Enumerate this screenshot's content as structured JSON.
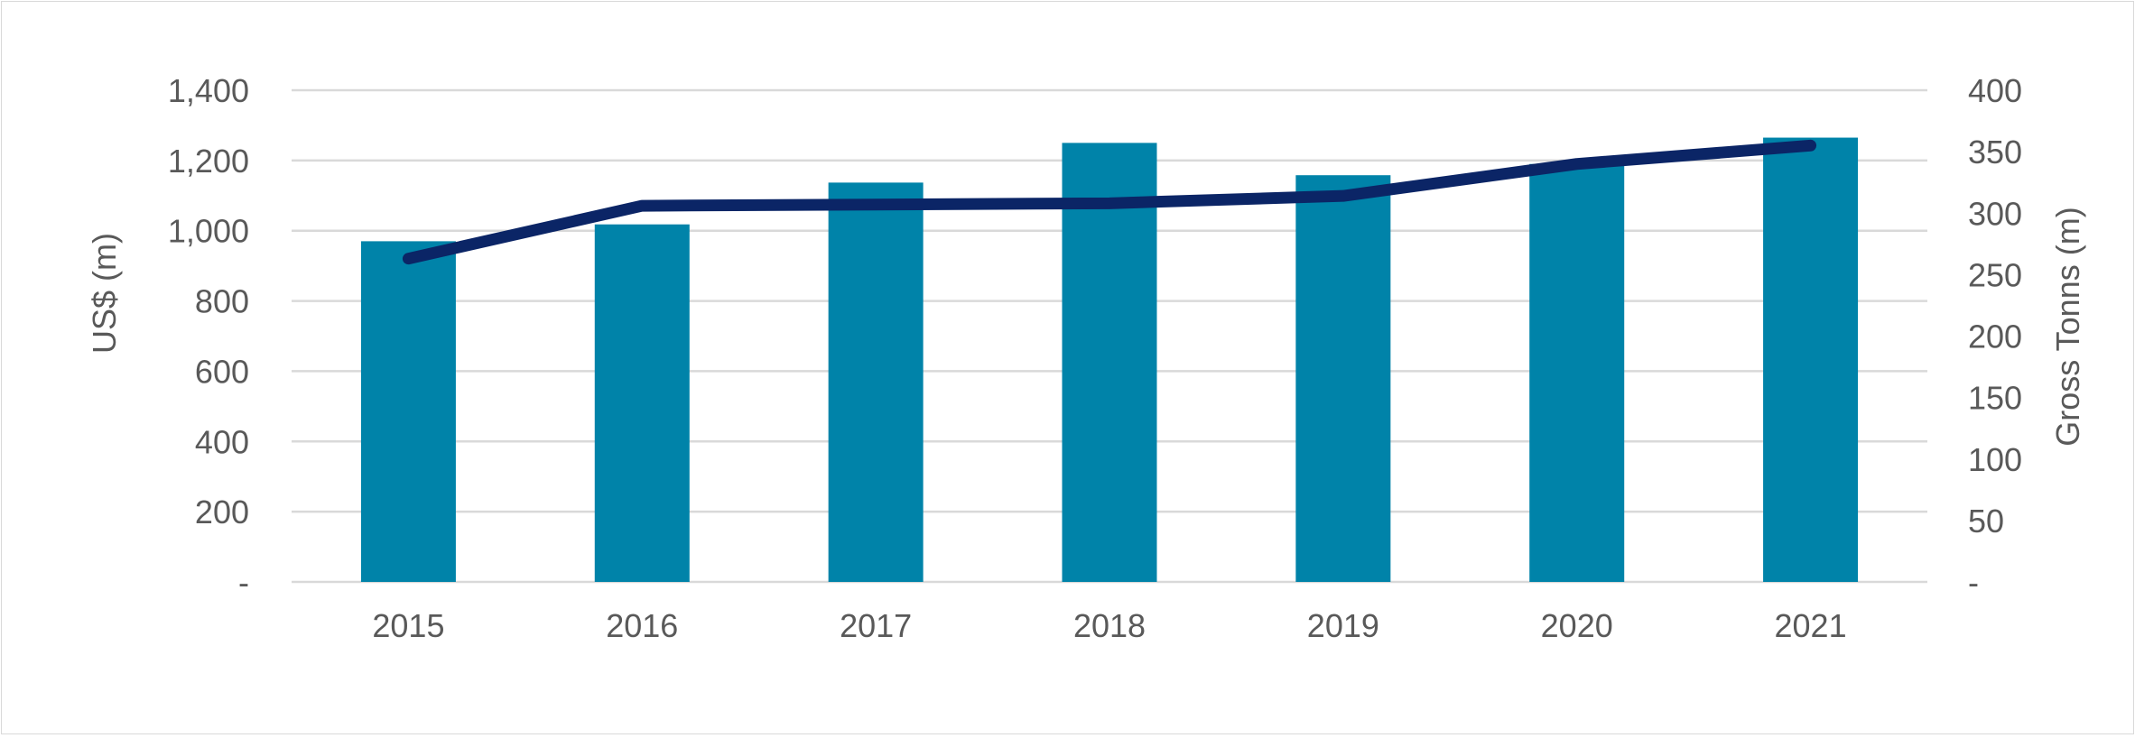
{
  "chart_data": {
    "type": "bar",
    "categories": [
      "2015",
      "2016",
      "2017",
      "2018",
      "2019",
      "2020",
      "2021"
    ],
    "series": [
      {
        "type": "bar",
        "axis": "left",
        "values": [
          970,
          1018,
          1137,
          1250,
          1158,
          1190,
          1265
        ],
        "color": "#0083A9"
      },
      {
        "type": "line",
        "axis": "right",
        "values": [
          263,
          306,
          307,
          308,
          314,
          340,
          355
        ],
        "color": "#0B2566"
      }
    ],
    "ylabel": "US$  (m)",
    "y2label": "Gross Tonns (m)",
    "ylim": [
      0,
      1400
    ],
    "y2lim": [
      0,
      400
    ],
    "yticks": [
      "-",
      "200",
      "400",
      "600",
      "800",
      "1,000",
      "1,200",
      "1,400"
    ],
    "y2ticks": [
      "-",
      "50",
      "100",
      "150",
      "200",
      "250",
      "300",
      "350",
      "400"
    ],
    "grid": true,
    "gridColor": "#d9d9d9"
  }
}
